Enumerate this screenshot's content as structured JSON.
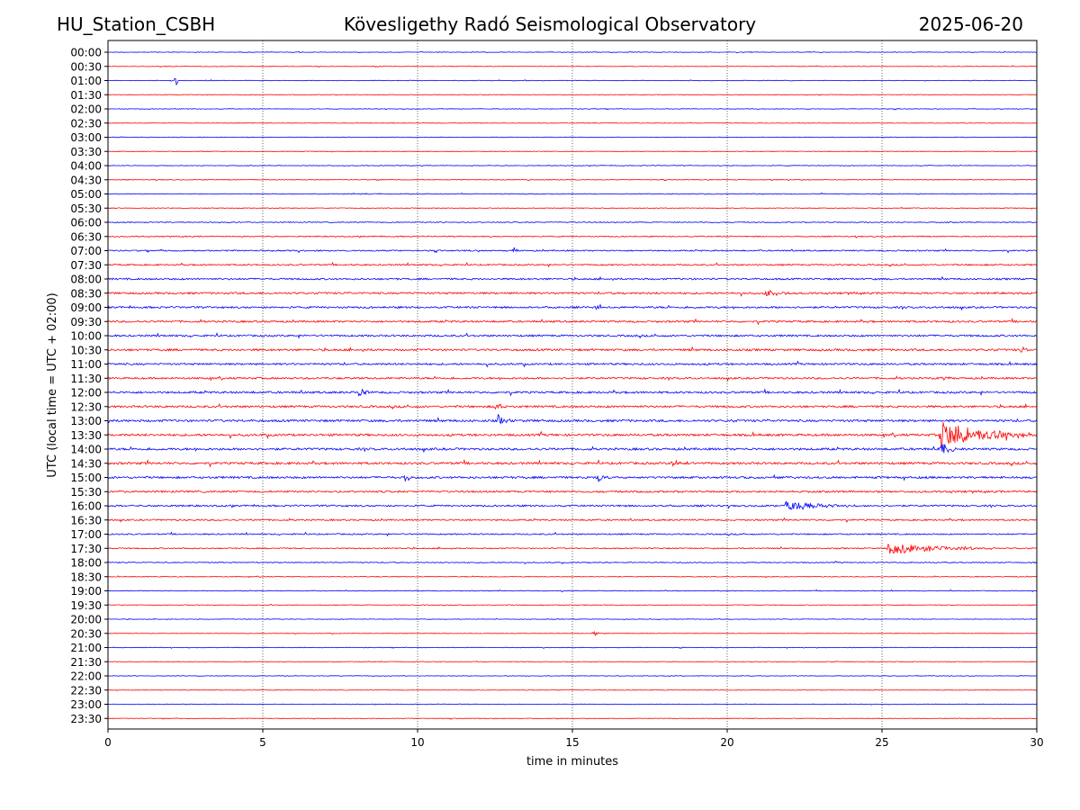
{
  "header": {
    "station": "HU_Station_CSBH",
    "observatory": "Kövesligethy Radó Seismological Observatory",
    "date": "2025-06-20"
  },
  "chart_data": {
    "type": "line",
    "subtype": "helicorder",
    "xlabel": "time in minutes",
    "ylabel": "UTC (local time = UTC + 02:00)",
    "xlim": [
      0,
      30
    ],
    "x_ticks": [
      "0",
      "5",
      "10",
      "15",
      "20",
      "25",
      "30"
    ],
    "vertical_gridlines_at_minutes": [
      5,
      10,
      15,
      20,
      25
    ],
    "row_labels": [
      "00:00",
      "00:30",
      "01:00",
      "01:30",
      "02:00",
      "02:30",
      "03:00",
      "03:30",
      "04:00",
      "04:30",
      "05:00",
      "05:30",
      "06:00",
      "06:30",
      "07:00",
      "07:30",
      "08:00",
      "08:30",
      "09:00",
      "09:30",
      "10:00",
      "10:30",
      "11:00",
      "11:30",
      "12:00",
      "12:30",
      "13:00",
      "13:30",
      "14:00",
      "14:30",
      "15:00",
      "15:30",
      "16:00",
      "16:30",
      "17:00",
      "17:30",
      "18:00",
      "18:30",
      "19:00",
      "19:30",
      "20:00",
      "20:30",
      "21:00",
      "21:30",
      "22:00",
      "22:30",
      "23:00",
      "23:30"
    ],
    "series_colors": [
      "#0000ff",
      "#ff0000"
    ],
    "noise_level_by_row": [
      0.3,
      0.3,
      0.3,
      0.3,
      0.3,
      0.3,
      0.3,
      0.3,
      0.35,
      0.35,
      0.4,
      0.4,
      0.5,
      0.55,
      0.7,
      0.8,
      0.9,
      1.0,
      1.0,
      1.0,
      1.0,
      1.1,
      1.0,
      1.0,
      1.1,
      1.1,
      1.2,
      1.2,
      1.2,
      1.2,
      1.1,
      1.0,
      0.9,
      0.8,
      0.7,
      0.6,
      0.5,
      0.4,
      0.4,
      0.35,
      0.3,
      0.3,
      0.3,
      0.3,
      0.3,
      0.3,
      0.3,
      0.3
    ],
    "events": [
      {
        "row": "01:00",
        "minute": 2.2,
        "amplitude": 30,
        "duration_min": 0.06,
        "note": "spike"
      },
      {
        "row": "09:00",
        "minute": 15.8,
        "amplitude": 8,
        "duration_min": 0.2
      },
      {
        "row": "12:00",
        "minute": 8.1,
        "amplitude": 7,
        "duration_min": 0.4
      },
      {
        "row": "12:30",
        "minute": 12.5,
        "amplitude": 5,
        "duration_min": 0.4
      },
      {
        "row": "13:00",
        "minute": 12.6,
        "amplitude": 7,
        "duration_min": 0.4
      },
      {
        "row": "13:30",
        "minute": 26.9,
        "amplitude": 16,
        "duration_min": 3.0
      },
      {
        "row": "14:00",
        "minute": 26.9,
        "amplitude": 9,
        "duration_min": 0.6
      },
      {
        "row": "15:00",
        "minute": 9.6,
        "amplitude": 6,
        "duration_min": 0.4
      },
      {
        "row": "15:00",
        "minute": 15.8,
        "amplitude": 6,
        "duration_min": 0.4
      },
      {
        "row": "16:00",
        "minute": 21.9,
        "amplitude": 6,
        "duration_min": 2.5
      },
      {
        "row": "17:30",
        "minute": 25.2,
        "amplitude": 7,
        "duration_min": 3.5
      },
      {
        "row": "20:30",
        "minute": 15.7,
        "amplitude": 4,
        "duration_min": 0.2
      },
      {
        "row": "07:00",
        "minute": 13.1,
        "amplitude": 4,
        "duration_min": 0.3
      },
      {
        "row": "08:30",
        "minute": 21.2,
        "amplitude": 4,
        "duration_min": 1.0
      },
      {
        "row": "10:30",
        "minute": 29.5,
        "amplitude": 6,
        "duration_min": 0.2
      },
      {
        "row": "11:30",
        "minute": 26.9,
        "amplitude": 4,
        "duration_min": 0.4
      },
      {
        "row": "14:30",
        "minute": 18.2,
        "amplitude": 4,
        "duration_min": 0.6
      }
    ]
  }
}
